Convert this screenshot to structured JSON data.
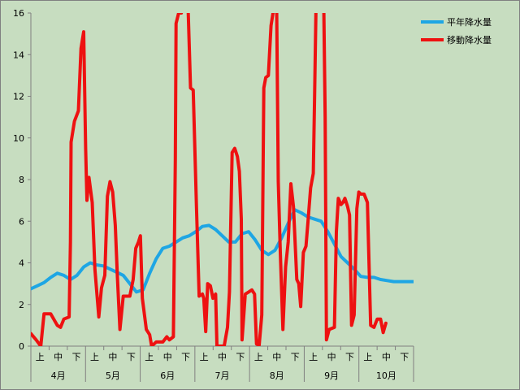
{
  "chart_data": {
    "type": "line",
    "ylim": [
      0,
      16
    ],
    "yticks": [
      "0",
      "2",
      "4",
      "6",
      "8",
      "10",
      "12",
      "14",
      "16"
    ],
    "grid": false,
    "legend_position": "top-right",
    "sub_ticks": [
      "上",
      "中",
      "下"
    ],
    "months": [
      "4月",
      "5月",
      "6月",
      "7月",
      "8月",
      "9月",
      "10月"
    ],
    "series": [
      {
        "name": "平年降水量",
        "color": "#1ea6e4",
        "points": [
          [
            0,
            2.75
          ],
          [
            1,
            2.9
          ],
          [
            2,
            3.05
          ],
          [
            3,
            3.3
          ],
          [
            4,
            3.5
          ],
          [
            5,
            3.4
          ],
          [
            6,
            3.2
          ],
          [
            7,
            3.4
          ],
          [
            8,
            3.8
          ],
          [
            9,
            4.0
          ],
          [
            10,
            3.9
          ],
          [
            11,
            3.85
          ],
          [
            12,
            3.7
          ],
          [
            13,
            3.55
          ],
          [
            14,
            3.4
          ],
          [
            15,
            3.0
          ],
          [
            16,
            2.6
          ],
          [
            17,
            2.7
          ],
          [
            18,
            3.5
          ],
          [
            19,
            4.2
          ],
          [
            20,
            4.7
          ],
          [
            21,
            4.8
          ],
          [
            22,
            5.0
          ],
          [
            23,
            5.2
          ],
          [
            24,
            5.3
          ],
          [
            25,
            5.5
          ],
          [
            26,
            5.75
          ],
          [
            27,
            5.8
          ],
          [
            28,
            5.6
          ],
          [
            29,
            5.3
          ],
          [
            30,
            5.0
          ],
          [
            31,
            5.0
          ],
          [
            32,
            5.4
          ],
          [
            33,
            5.5
          ],
          [
            34,
            5.1
          ],
          [
            35,
            4.6
          ],
          [
            36,
            4.4
          ],
          [
            37,
            4.6
          ],
          [
            38,
            5.2
          ],
          [
            39,
            5.9
          ],
          [
            40,
            6.55
          ],
          [
            41,
            6.4
          ],
          [
            42,
            6.2
          ],
          [
            43,
            6.1
          ],
          [
            44,
            6.0
          ],
          [
            45,
            5.5
          ],
          [
            46,
            4.9
          ],
          [
            47,
            4.3
          ],
          [
            48,
            4.0
          ],
          [
            49,
            3.7
          ],
          [
            50,
            3.35
          ],
          [
            51,
            3.3
          ],
          [
            52,
            3.3
          ],
          [
            53,
            3.2
          ],
          [
            54,
            3.15
          ],
          [
            55,
            3.1
          ],
          [
            56,
            3.1
          ],
          [
            57,
            3.1
          ],
          [
            58,
            3.1
          ]
        ]
      },
      {
        "name": "移動降水量",
        "color": "#ee1111",
        "points": [
          [
            0,
            0.6
          ],
          [
            0.8,
            0.3
          ],
          [
            1.5,
            0.0
          ],
          [
            2,
            1.55
          ],
          [
            3,
            1.55
          ],
          [
            4,
            1.0
          ],
          [
            4.5,
            0.9
          ],
          [
            5,
            1.3
          ],
          [
            5.8,
            1.4
          ],
          [
            6,
            5.0
          ],
          [
            6.1,
            9.8
          ],
          [
            6.6,
            10.8
          ],
          [
            7.2,
            11.3
          ],
          [
            7.6,
            14.3
          ],
          [
            8.0,
            15.1
          ],
          [
            8.3,
            9.5
          ],
          [
            8.5,
            7.0
          ],
          [
            8.8,
            8.1
          ],
          [
            9.3,
            6.9
          ],
          [
            9.7,
            3.7
          ],
          [
            10.3,
            1.4
          ],
          [
            10.7,
            2.8
          ],
          [
            11.2,
            3.4
          ],
          [
            11.6,
            7.2
          ],
          [
            12.0,
            7.9
          ],
          [
            12.4,
            7.4
          ],
          [
            12.8,
            5.8
          ],
          [
            13.1,
            3.4
          ],
          [
            13.5,
            0.8
          ],
          [
            14.0,
            2.4
          ],
          [
            15.0,
            2.4
          ],
          [
            15.5,
            3.2
          ],
          [
            15.9,
            4.7
          ],
          [
            16.3,
            5.0
          ],
          [
            16.6,
            5.3
          ],
          [
            16.9,
            2.3
          ],
          [
            17.5,
            0.8
          ],
          [
            18.0,
            0.55
          ],
          [
            18.3,
            0.0
          ],
          [
            19.0,
            0.2
          ],
          [
            20.0,
            0.2
          ],
          [
            20.6,
            0.45
          ],
          [
            21.0,
            0.3
          ],
          [
            21.6,
            0.45
          ],
          [
            21.9,
            9.0
          ],
          [
            22.0,
            15.5
          ],
          [
            22.4,
            16.0
          ],
          [
            22.8,
            16.0
          ],
          [
            23.0,
            18.5
          ],
          [
            23.5,
            18.5
          ],
          [
            23.8,
            16.5
          ],
          [
            24.2,
            12.4
          ],
          [
            24.6,
            12.3
          ],
          [
            25.1,
            6.7
          ],
          [
            25.5,
            2.4
          ],
          [
            26.0,
            2.5
          ],
          [
            26.2,
            2.3
          ],
          [
            26.5,
            0.7
          ],
          [
            26.8,
            3.0
          ],
          [
            27.2,
            2.9
          ],
          [
            27.6,
            2.3
          ],
          [
            28.0,
            2.5
          ],
          [
            28.2,
            0.0
          ],
          [
            29.3,
            0.0
          ],
          [
            29.8,
            0.9
          ],
          [
            30.1,
            2.6
          ],
          [
            30.5,
            9.3
          ],
          [
            30.9,
            9.5
          ],
          [
            31.3,
            9.1
          ],
          [
            31.6,
            8.4
          ],
          [
            31.9,
            6.1
          ],
          [
            32.0,
            0.3
          ],
          [
            32.5,
            2.5
          ],
          [
            33.0,
            2.6
          ],
          [
            33.5,
            2.7
          ],
          [
            33.9,
            2.5
          ],
          [
            34.2,
            0.1
          ],
          [
            34.6,
            0.05
          ],
          [
            35.0,
            1.5
          ],
          [
            35.3,
            12.4
          ],
          [
            35.6,
            12.9
          ],
          [
            36.0,
            13.0
          ],
          [
            36.4,
            15.4
          ],
          [
            36.7,
            16.0
          ],
          [
            37.0,
            18.0
          ],
          [
            37.2,
            18.0
          ],
          [
            37.5,
            7.9
          ],
          [
            37.8,
            4.5
          ],
          [
            38.2,
            0.8
          ],
          [
            38.6,
            3.8
          ],
          [
            39.0,
            5.0
          ],
          [
            39.4,
            7.8
          ],
          [
            39.8,
            6.7
          ],
          [
            40.3,
            3.2
          ],
          [
            40.6,
            3.0
          ],
          [
            40.9,
            1.9
          ],
          [
            41.3,
            4.5
          ],
          [
            41.7,
            4.8
          ],
          [
            42.0,
            6.0
          ],
          [
            42.4,
            7.6
          ],
          [
            42.8,
            8.3
          ],
          [
            43.0,
            12.0
          ],
          [
            43.2,
            16.0
          ],
          [
            43.4,
            18.0
          ],
          [
            44.1,
            18.0
          ],
          [
            44.4,
            16.0
          ],
          [
            44.6,
            11.0
          ],
          [
            44.8,
            0.3
          ],
          [
            45.2,
            0.8
          ],
          [
            46.0,
            0.9
          ],
          [
            46.3,
            5.5
          ],
          [
            46.6,
            7.1
          ],
          [
            47.0,
            6.8
          ],
          [
            47.3,
            6.9
          ],
          [
            47.6,
            7.1
          ],
          [
            48.0,
            6.7
          ],
          [
            48.3,
            6.3
          ],
          [
            48.6,
            1.0
          ],
          [
            49.0,
            1.5
          ],
          [
            49.4,
            6.6
          ],
          [
            49.7,
            7.4
          ],
          [
            50.0,
            7.3
          ],
          [
            50.5,
            7.3
          ],
          [
            51.0,
            6.9
          ],
          [
            51.5,
            1.0
          ],
          [
            52.0,
            0.9
          ],
          [
            52.5,
            1.3
          ],
          [
            53.0,
            1.3
          ],
          [
            53.4,
            0.65
          ],
          [
            53.8,
            1.1
          ]
        ]
      }
    ]
  }
}
